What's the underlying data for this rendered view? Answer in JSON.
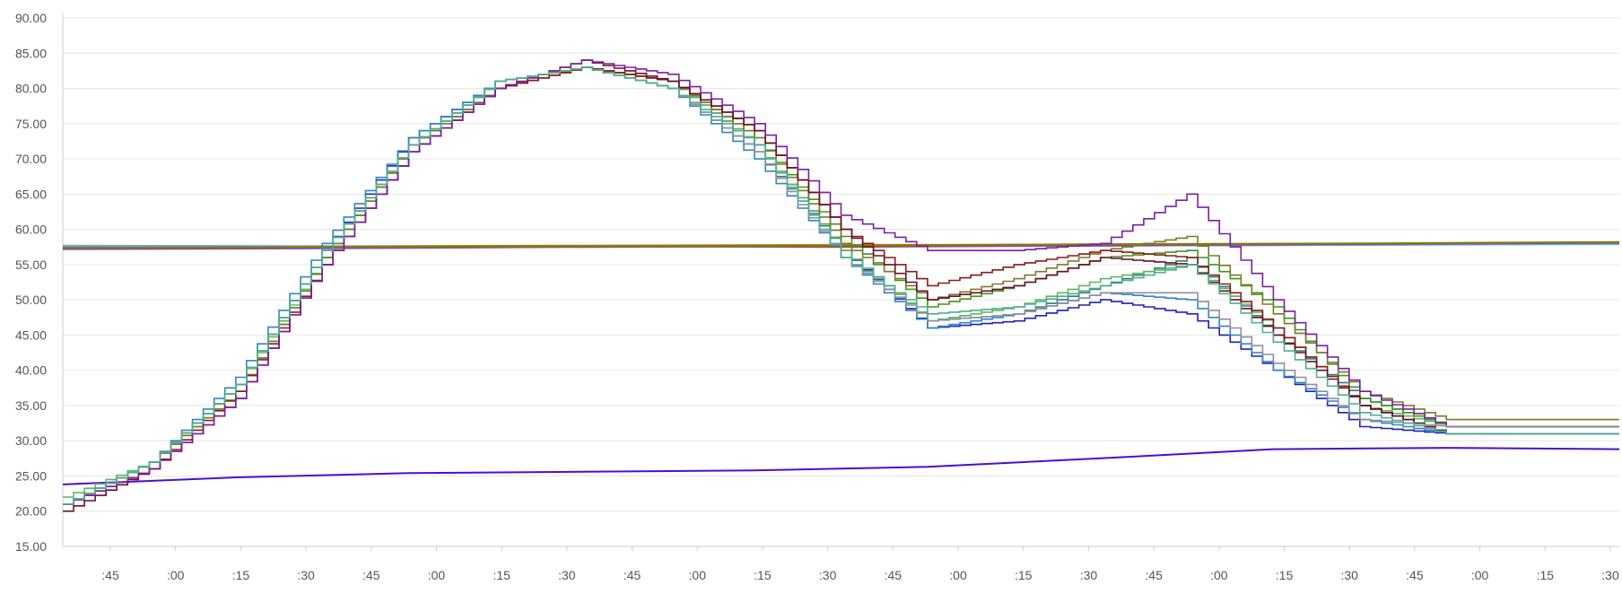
{
  "chart_data": {
    "type": "line",
    "title": "",
    "xlabel": "",
    "ylabel": "",
    "ylim": [
      15,
      90
    ],
    "y_ticks": [
      "15.00",
      "20.00",
      "25.00",
      "30.00",
      "35.00",
      "40.00",
      "45.00",
      "50.00",
      "55.00",
      "60.00",
      "65.00",
      "70.00",
      "75.00",
      "80.00",
      "85.00",
      "90.00"
    ],
    "x_range": [
      0,
      36
    ],
    "x_ticks": [
      ":45",
      ":00",
      ":15",
      ":30",
      ":45",
      ":00",
      ":15",
      ":30",
      ":45",
      ":00",
      ":15",
      ":30",
      ":45",
      ":00",
      ":15",
      ":30",
      ":45",
      ":00",
      ":15",
      ":30",
      ":45",
      ":00",
      ":15",
      ":30"
    ],
    "grid": true,
    "stepped": true,
    "colors": {
      "grid": "#e6e6e6",
      "axis": "#cccccc",
      "tick_text": "#555555"
    },
    "curve_series": {
      "x": [
        0,
        2,
        4,
        6,
        8,
        10,
        12,
        14,
        16,
        18,
        20,
        22,
        24,
        26,
        28,
        30,
        32,
        34,
        36
      ],
      "values": [
        {
          "color": "#1f1fbf",
          "y": [
            21,
            27,
            38,
            57,
            73,
            81,
            83,
            81,
            72,
            57,
            46,
            47,
            50,
            48,
            40,
            32,
            31,
            31,
            31
          ]
        },
        {
          "color": "#2e86c1",
          "y": [
            21,
            27,
            39,
            58,
            73,
            81,
            83,
            80,
            70,
            56,
            46,
            48,
            51,
            50,
            40,
            33,
            31,
            31,
            31
          ]
        },
        {
          "color": "#2e7d7d",
          "y": [
            21,
            27,
            38,
            57,
            72,
            81,
            83,
            80,
            71,
            57,
            47,
            48,
            52,
            56,
            45,
            36,
            32,
            32,
            32
          ]
        },
        {
          "color": "#5cb85c",
          "y": [
            22,
            27,
            38,
            56,
            72,
            81,
            83,
            81,
            72,
            57,
            47,
            49,
            53,
            55,
            46,
            35,
            32,
            32,
            32
          ]
        },
        {
          "color": "#3a9a1a",
          "y": [
            21,
            27,
            37,
            56,
            72,
            80,
            83,
            81,
            73,
            59,
            49,
            52,
            56,
            57,
            49,
            36,
            32,
            32,
            32
          ]
        },
        {
          "color": "#7a7a2a",
          "y": [
            21,
            27,
            37,
            56,
            72,
            80,
            83,
            81,
            73,
            58,
            50,
            53,
            57,
            59,
            48,
            37,
            33,
            33,
            33
          ]
        },
        {
          "color": "#8b1a1a",
          "y": [
            21,
            26,
            37,
            55,
            71,
            80,
            83,
            81,
            74,
            60,
            52,
            55,
            57,
            56,
            46,
            35,
            31,
            31,
            31
          ]
        },
        {
          "color": "#6a0f2a",
          "y": [
            20,
            26,
            36,
            55,
            71,
            80,
            84,
            81,
            74,
            60,
            50,
            52,
            56,
            55,
            45,
            35,
            31,
            31,
            31
          ]
        },
        {
          "color": "#7b1fa2",
          "y": [
            21,
            26,
            36,
            55,
            71,
            80,
            84,
            82,
            75,
            62,
            57,
            57,
            58,
            65,
            50,
            37,
            32,
            32,
            32
          ]
        },
        {
          "color": "#8e8ea0",
          "y": [
            21,
            27,
            38,
            57,
            72,
            81,
            83,
            80,
            71,
            56,
            47,
            48,
            51,
            51,
            41,
            33,
            32,
            32,
            32
          ]
        },
        {
          "color": "#4caf90",
          "y": [
            21,
            27,
            38,
            57,
            72,
            81,
            83,
            80,
            72,
            56,
            48,
            49,
            52,
            55,
            44,
            34,
            31,
            31,
            31
          ]
        }
      ]
    },
    "flat_series": {
      "x": [
        0,
        6,
        12,
        18,
        24,
        30,
        36
      ],
      "values": [
        {
          "color": "#c0392b",
          "y": [
            57.3,
            57.4,
            57.6,
            57.5,
            57.7,
            57.8,
            58.0
          ]
        },
        {
          "color": "#b8860b",
          "y": [
            57.5,
            57.6,
            57.7,
            57.8,
            57.8,
            57.9,
            58.0
          ]
        },
        {
          "color": "#5dade2",
          "y": [
            57.7,
            57.6,
            57.5,
            57.6,
            57.7,
            57.8,
            57.9
          ]
        },
        {
          "color": "#8e44ad",
          "y": [
            57.2,
            57.3,
            57.5,
            57.6,
            57.7,
            57.9,
            58.1
          ]
        },
        {
          "color": "#808000",
          "y": [
            57.4,
            57.5,
            57.6,
            57.7,
            57.9,
            58.0,
            58.2
          ]
        }
      ]
    },
    "baseline_series": {
      "color": "#4b0fcf",
      "x": [
        0,
        4,
        8,
        12,
        16,
        20,
        24,
        28,
        32,
        36
      ],
      "y": [
        23.8,
        24.8,
        25.4,
        25.6,
        25.8,
        26.3,
        27.5,
        28.8,
        29.0,
        28.8
      ]
    }
  }
}
